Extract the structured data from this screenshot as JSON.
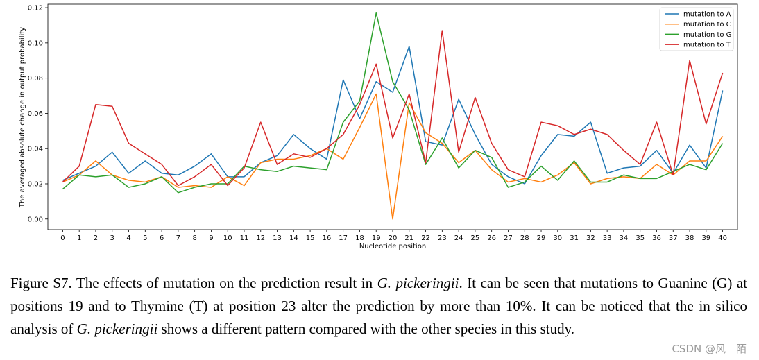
{
  "chart_data": {
    "type": "line",
    "xlabel": "Nucleotide position",
    "ylabel": "The averaged absolute change in output probability",
    "xlim": [
      -0.9,
      40.9
    ],
    "ylim": [
      -0.006,
      0.122
    ],
    "x": [
      0,
      1,
      2,
      3,
      4,
      5,
      6,
      7,
      8,
      9,
      10,
      11,
      12,
      13,
      14,
      15,
      16,
      17,
      18,
      19,
      20,
      21,
      22,
      23,
      24,
      25,
      26,
      27,
      28,
      29,
      30,
      31,
      32,
      33,
      34,
      35,
      36,
      37,
      38,
      39,
      40
    ],
    "yticks": [
      0.0,
      0.02,
      0.04,
      0.06,
      0.08,
      0.1,
      0.12
    ],
    "ytick_labels": [
      "0.00",
      "0.02",
      "0.04",
      "0.06",
      "0.08",
      "0.10",
      "0.12"
    ],
    "grid": false,
    "legend_position": "top-right",
    "series": [
      {
        "name": "mutation to A",
        "color": "#1f77b4",
        "values": [
          0.022,
          0.026,
          0.03,
          0.038,
          0.026,
          0.033,
          0.026,
          0.025,
          0.03,
          0.037,
          0.024,
          0.024,
          0.032,
          0.036,
          0.048,
          0.04,
          0.034,
          0.079,
          0.057,
          0.078,
          0.072,
          0.098,
          0.044,
          0.042,
          0.068,
          0.048,
          0.031,
          0.024,
          0.02,
          0.036,
          0.048,
          0.047,
          0.055,
          0.026,
          0.029,
          0.03,
          0.039,
          0.026,
          0.042,
          0.029,
          0.073
        ]
      },
      {
        "name": "mutation to C",
        "color": "#ff7f0e",
        "values": [
          0.021,
          0.025,
          0.033,
          0.025,
          0.022,
          0.021,
          0.024,
          0.018,
          0.019,
          0.018,
          0.024,
          0.019,
          0.032,
          0.034,
          0.034,
          0.036,
          0.04,
          0.034,
          0.052,
          0.071,
          0.0,
          0.066,
          0.049,
          0.043,
          0.032,
          0.039,
          0.028,
          0.021,
          0.023,
          0.021,
          0.025,
          0.032,
          0.02,
          0.023,
          0.024,
          0.023,
          0.031,
          0.025,
          0.033,
          0.033,
          0.047
        ]
      },
      {
        "name": "mutation to G",
        "color": "#2ca02c",
        "values": [
          0.017,
          0.025,
          0.024,
          0.025,
          0.018,
          0.02,
          0.024,
          0.015,
          0.018,
          0.02,
          0.02,
          0.03,
          0.028,
          0.027,
          0.03,
          0.029,
          0.028,
          0.055,
          0.067,
          0.117,
          0.078,
          0.062,
          0.031,
          0.046,
          0.029,
          0.039,
          0.035,
          0.018,
          0.021,
          0.03,
          0.022,
          0.033,
          0.021,
          0.021,
          0.025,
          0.023,
          0.023,
          0.027,
          0.031,
          0.028,
          0.043
        ]
      },
      {
        "name": "mutation to T",
        "color": "#d62728",
        "values": [
          0.021,
          0.03,
          0.065,
          0.064,
          0.043,
          0.037,
          0.031,
          0.019,
          0.024,
          0.031,
          0.019,
          0.029,
          0.055,
          0.031,
          0.037,
          0.035,
          0.04,
          0.048,
          0.065,
          0.088,
          0.046,
          0.071,
          0.032,
          0.107,
          0.038,
          0.069,
          0.043,
          0.028,
          0.024,
          0.055,
          0.053,
          0.048,
          0.051,
          0.048,
          0.039,
          0.031,
          0.055,
          0.025,
          0.09,
          0.054,
          0.083
        ]
      }
    ]
  },
  "caption": {
    "figure_label": "Figure S7.",
    "t1": " The effects of mutation on the prediction result in ",
    "species1": "G. pickeringii",
    "t2": ". It can be seen that mutations to Guanine (G) at positions 19 and to Thymine (T) at position 23 alter the prediction by more than 10%. It can be noticed that the in silico analysis of ",
    "species2": "G. pickeringii",
    "t3": " shows a different pattern compared with the other species in this study."
  },
  "watermark": "CSDN @风　陌"
}
